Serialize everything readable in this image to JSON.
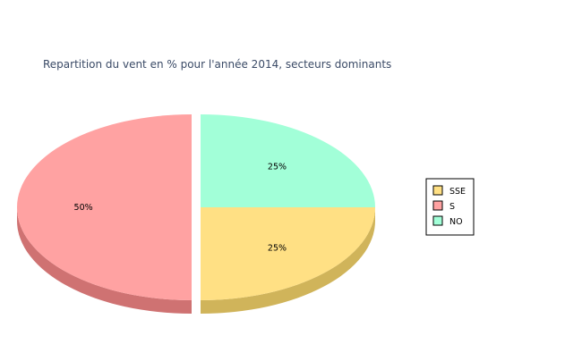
{
  "chart_data": {
    "type": "pie",
    "title": "Repartition du vent en % pour l'année 2014, secteurs dominants",
    "slices": [
      {
        "name": "SSE",
        "value": 25,
        "label": "25%",
        "color": "#ffe084",
        "side_color": "#d0b45a"
      },
      {
        "name": "S",
        "value": 50,
        "label": "50%",
        "color": "#ffa2a2",
        "side_color": "#cf7272"
      },
      {
        "name": "NO",
        "value": 25,
        "label": "25%",
        "color": "#a2ffd8",
        "side_color": "#72cfa8"
      }
    ],
    "start_angle_deg": 0,
    "direction": "clockwise",
    "three_d": true,
    "exploded": "S",
    "legend_position": "right"
  }
}
